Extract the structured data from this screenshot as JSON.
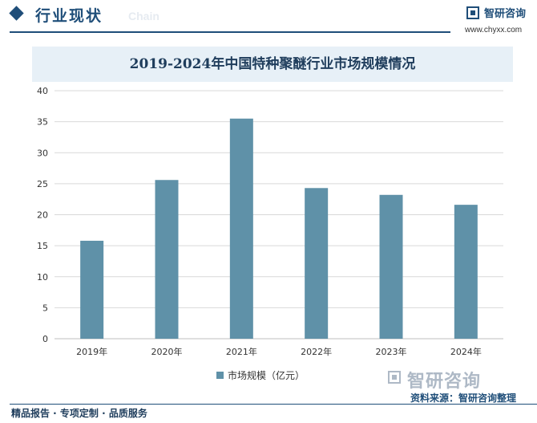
{
  "header": {
    "section_title": "行业现状",
    "section_watermark": "Chain",
    "brand_name": "智研咨询",
    "brand_url": "www.chyxx.com"
  },
  "chart_data": {
    "type": "bar",
    "title": "2019-2024年中国特种聚醚行业市场规模情况",
    "categories": [
      "2019年",
      "2020年",
      "2021年",
      "2022年",
      "2023年",
      "2024年"
    ],
    "series": [
      {
        "name": "市场规模（亿元）",
        "values": [
          15.8,
          25.6,
          35.5,
          24.3,
          23.2,
          21.6
        ]
      }
    ],
    "ylim": [
      0,
      40
    ],
    "yticks": [
      0,
      5,
      10,
      15,
      20,
      25,
      30,
      35,
      40
    ],
    "grid": true,
    "legend_position": "bottom",
    "bar_color": "#5f91a8"
  },
  "watermark": {
    "brand_name": "智研咨询"
  },
  "source": "资料来源：智研咨询整理",
  "footer": "精品报告 · 专项定制 · 品质服务"
}
